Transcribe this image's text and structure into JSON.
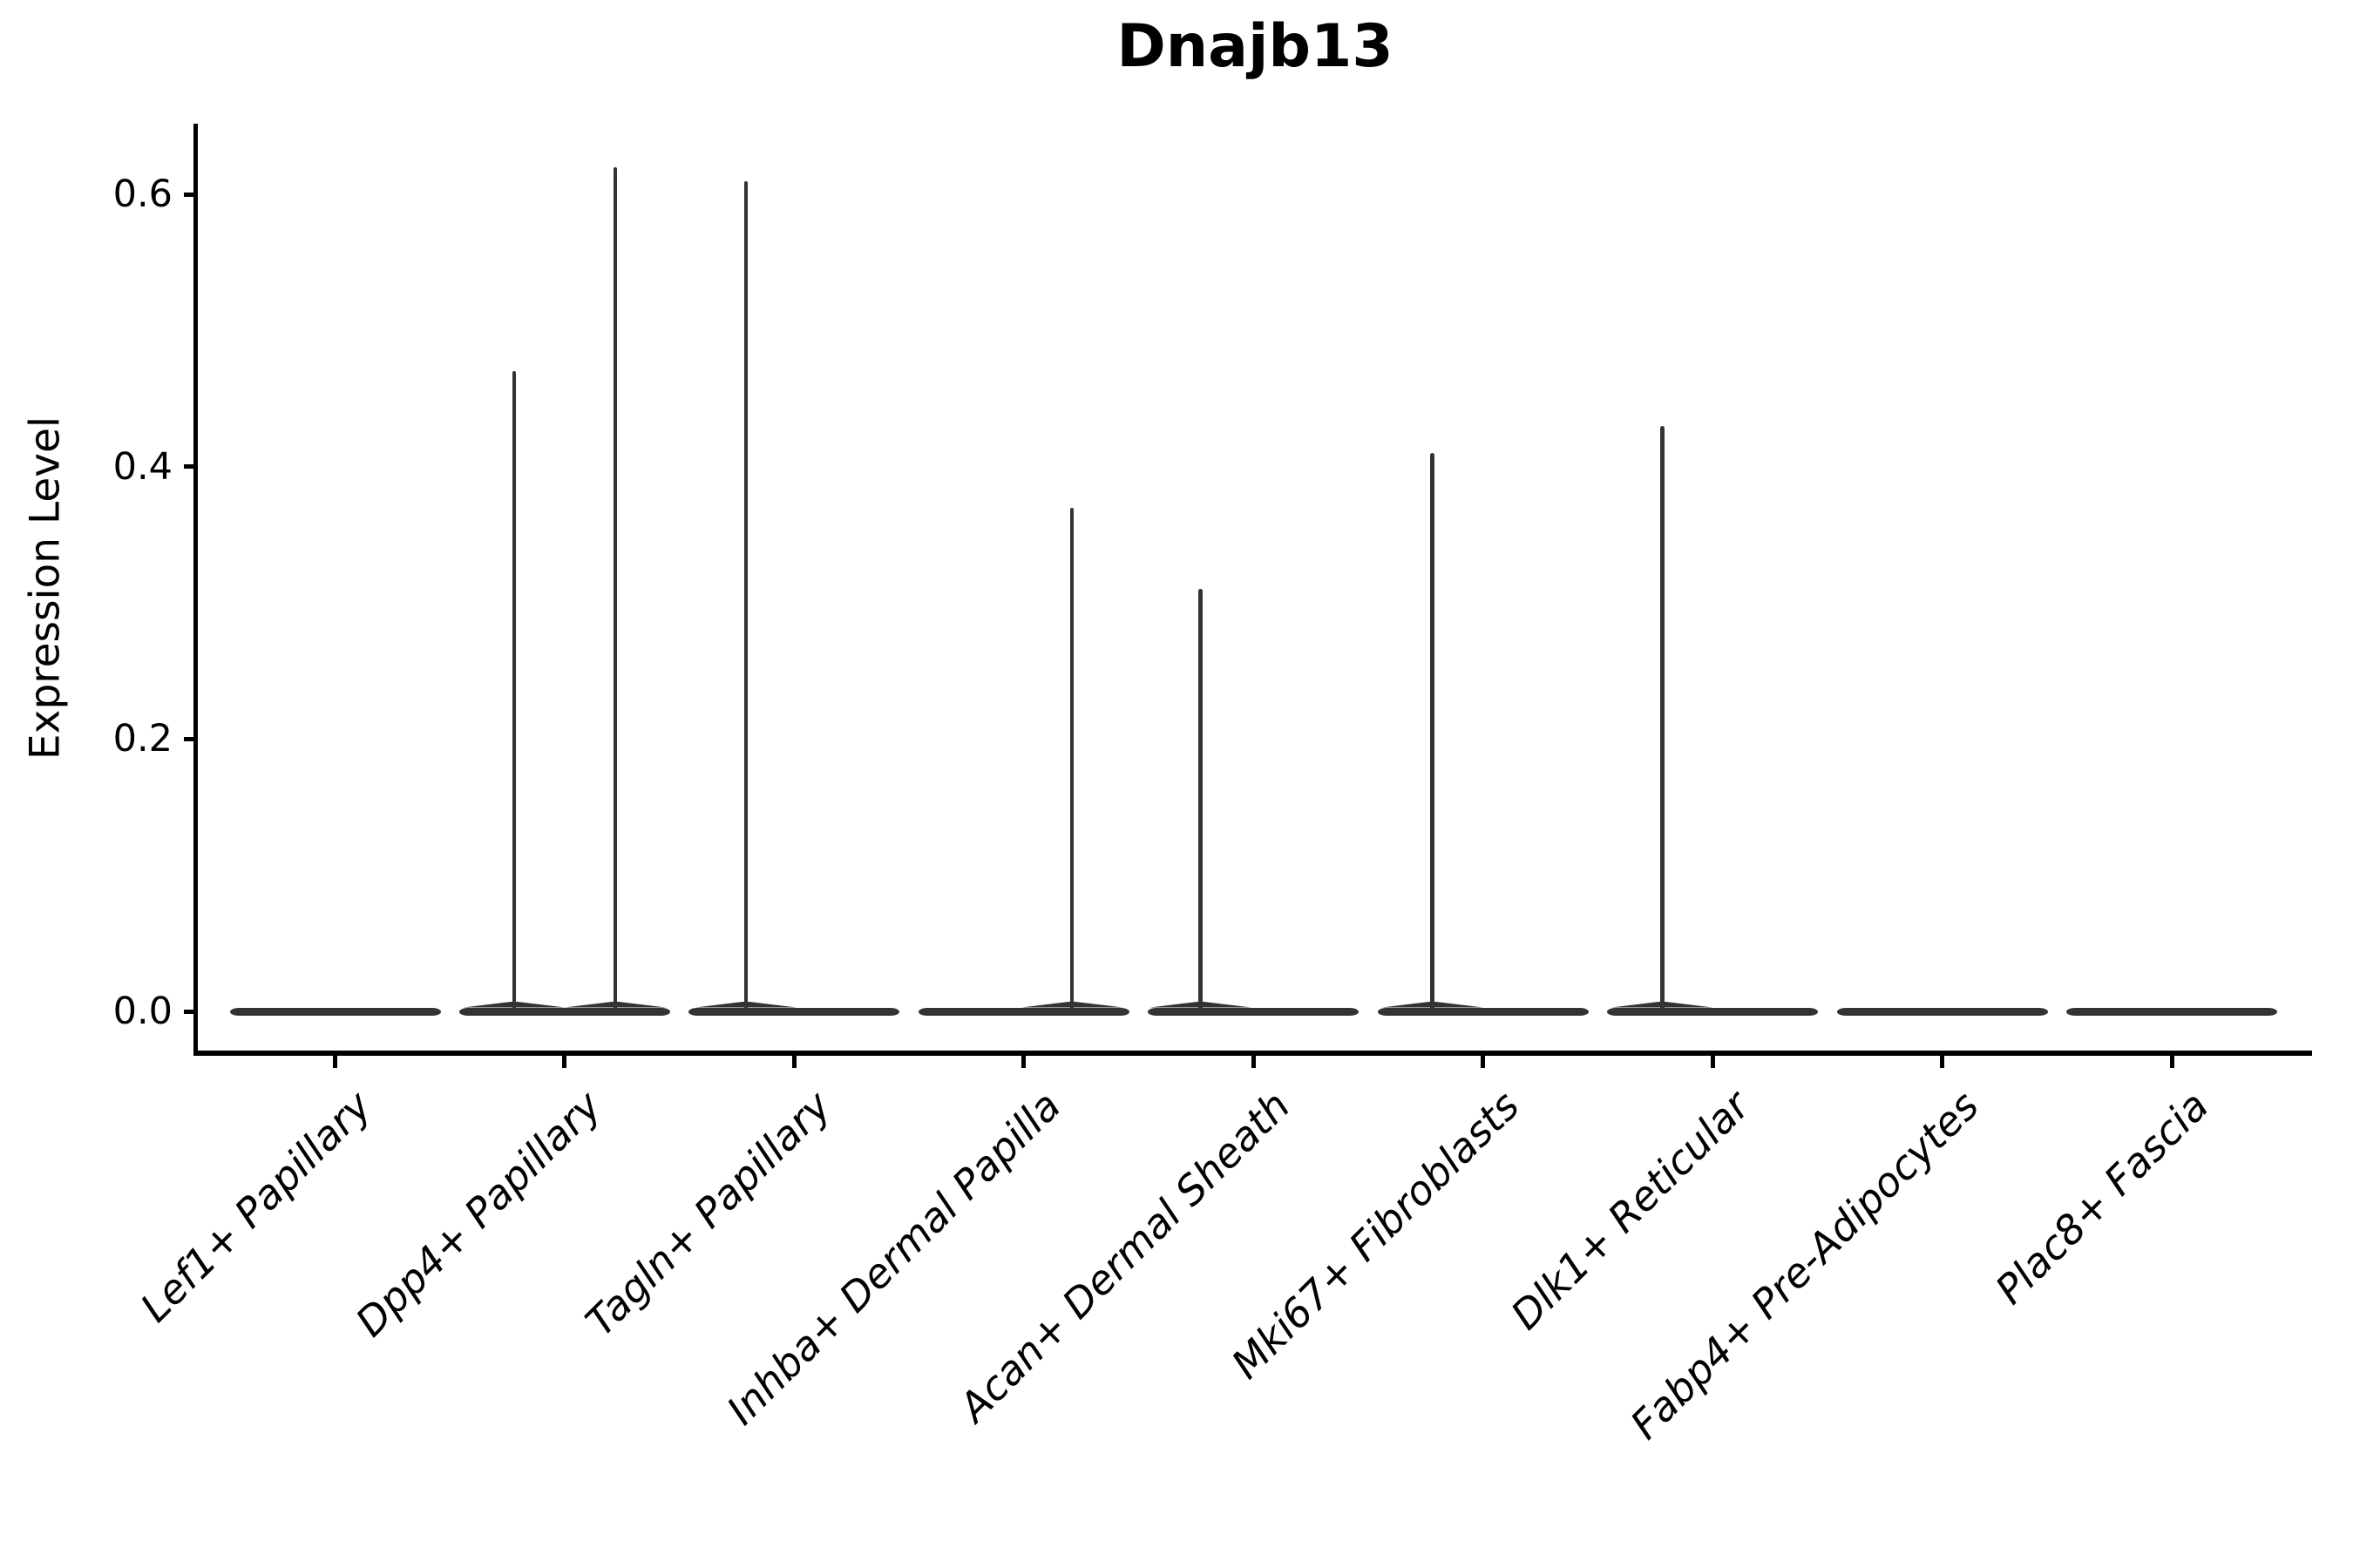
{
  "chart_data": {
    "type": "violin",
    "title": "Dnajb13",
    "xlabel": "",
    "ylabel": "Expression Level",
    "categories": [
      "Lef1+ Papillary",
      "Dpp4+ Papillary",
      "Tagln+ Papillary",
      "Inhba+ Dermal Papilla",
      "Acan+ Dermal Sheath",
      "Mki67+ Fibroblasts",
      "Dlk1+ Reticular",
      "Fabp4+ Pre-Adipocytes",
      "Plac8+ Fascia"
    ],
    "yticks": [
      0.0,
      0.2,
      0.4,
      0.6
    ],
    "ytick_labels": [
      "0.0",
      "0.2",
      "0.4",
      "0.6"
    ],
    "ylim": [
      -0.031,
      0.652
    ],
    "grid": false,
    "legend": "none",
    "x_tick_rotation": 45,
    "axis_color": "#000000",
    "violin_color": "#333333",
    "violins": [
      {
        "category": "Lef1+ Papillary",
        "bulk_at": 0.0,
        "spikes": []
      },
      {
        "category": "Dpp4+ Papillary",
        "bulk_at": 0.0,
        "spikes": [
          {
            "offset": -0.22,
            "max": 0.47
          },
          {
            "offset": 0.22,
            "max": 0.62
          }
        ]
      },
      {
        "category": "Tagln+ Papillary",
        "bulk_at": 0.0,
        "spikes": [
          {
            "offset": -0.21,
            "max": 0.61
          }
        ]
      },
      {
        "category": "Inhba+ Dermal Papilla",
        "bulk_at": 0.0,
        "spikes": [
          {
            "offset": 0.21,
            "max": 0.37
          }
        ]
      },
      {
        "category": "Acan+ Dermal Sheath",
        "bulk_at": 0.0,
        "spikes": [
          {
            "offset": -0.23,
            "max": 0.31
          }
        ]
      },
      {
        "category": "Mki67+ Fibroblasts",
        "bulk_at": 0.0,
        "spikes": [
          {
            "offset": -0.22,
            "max": 0.41
          }
        ]
      },
      {
        "category": "Dlk1+ Reticular",
        "bulk_at": 0.0,
        "spikes": [
          {
            "offset": -0.22,
            "max": 0.43
          }
        ]
      },
      {
        "category": "Fabp4+ Pre-Adipocytes",
        "bulk_at": 0.0,
        "spikes": []
      },
      {
        "category": "Plac8+ Fascia",
        "bulk_at": 0.0,
        "spikes": []
      }
    ]
  }
}
